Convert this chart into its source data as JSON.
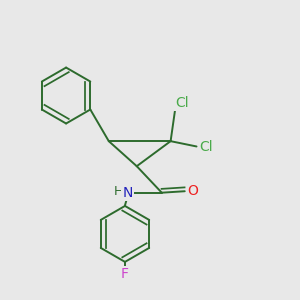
{
  "bg_color": "#e8e8e8",
  "bond_color": "#2d6b2d",
  "bond_width": 1.4,
  "atom_colors": {
    "Cl": "#4aaa4a",
    "O": "#ee2222",
    "N": "#2222bb",
    "F": "#cc44cc",
    "C": "#2d6b2d",
    "H": "#2d6b2d"
  },
  "font_size": 10,
  "font_size_small": 9
}
